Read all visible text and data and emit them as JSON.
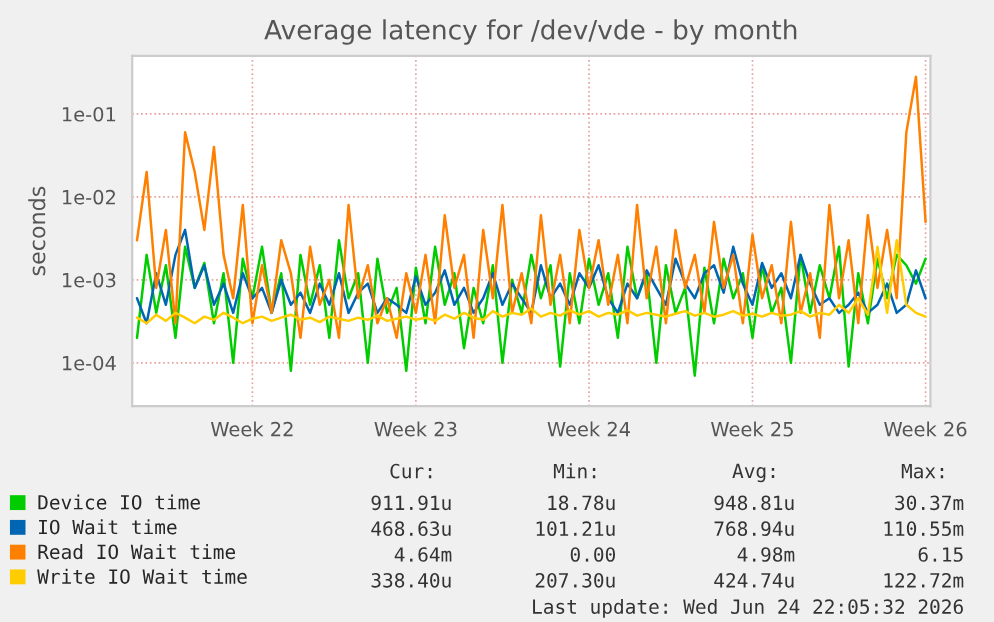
{
  "chart_data": {
    "type": "line",
    "title": "Average latency for /dev/vde - by month",
    "ylabel": "seconds",
    "categories": [
      null,
      null,
      null,
      null,
      null,
      null,
      null,
      null,
      null,
      null,
      null,
      null,
      "Week 22",
      null,
      null,
      null,
      null,
      null,
      null,
      null,
      null,
      null,
      null,
      null,
      null,
      null,
      null,
      null,
      null,
      "Week 23",
      null,
      null,
      null,
      null,
      null,
      null,
      null,
      null,
      null,
      null,
      null,
      null,
      null,
      null,
      null,
      null,
      null,
      "Week 24",
      null,
      null,
      null,
      null,
      null,
      null,
      null,
      null,
      null,
      null,
      null,
      null,
      null,
      null,
      null,
      null,
      "Week 25",
      null,
      null,
      null,
      null,
      null,
      null,
      null,
      null,
      null,
      null,
      null,
      null,
      null,
      null,
      null,
      null,
      null,
      "Week 26"
    ],
    "series": [
      {
        "name": "Device IO time",
        "color": "#00cc00",
        "values": [
          0.0002,
          0.002,
          0.0004,
          0.0015,
          0.0002,
          0.0025,
          0.0008,
          0.0016,
          0.0003,
          0.0012,
          0.0001,
          0.0018,
          0.0006,
          0.0025,
          0.0004,
          0.0012,
          8e-05,
          0.002,
          0.0005,
          0.0015,
          0.0002,
          0.003,
          0.0006,
          0.0012,
          0.0001,
          0.0018,
          0.0004,
          0.0008,
          8e-05,
          0.0014,
          0.0003,
          0.0025,
          0.0005,
          0.0012,
          0.00015,
          0.0008,
          0.0003,
          0.0015,
          0.0001,
          0.001,
          0.0004,
          0.002,
          0.0006,
          0.0015,
          9e-05,
          0.0012,
          0.0003,
          0.0018,
          0.0005,
          0.0012,
          0.0002,
          0.0025,
          0.0006,
          0.0012,
          0.0001,
          0.0015,
          0.0004,
          0.0008,
          7e-05,
          0.0014,
          0.0003,
          0.0018,
          0.0006,
          0.0012,
          0.0002,
          0.0015,
          0.0004,
          0.0008,
          0.0001,
          0.002,
          0.0004,
          0.0015,
          0.0006,
          0.0025,
          9e-05,
          0.0012,
          0.0003,
          0.0018,
          0.0006,
          0.002,
          0.0015,
          0.0009,
          0.0018
        ]
      },
      {
        "name": "IO Wait time",
        "color": "#0066b3",
        "values": [
          0.0006,
          0.0003,
          0.0012,
          0.0005,
          0.002,
          0.004,
          0.0008,
          0.0015,
          0.0005,
          0.0009,
          0.0004,
          0.0012,
          0.0006,
          0.0008,
          0.0004,
          0.001,
          0.0005,
          0.0007,
          0.0004,
          0.0009,
          0.0005,
          0.0012,
          0.0004,
          0.0007,
          0.0009,
          0.0004,
          0.0006,
          0.0005,
          0.0004,
          0.0011,
          0.0005,
          0.0007,
          0.0013,
          0.0005,
          0.0008,
          0.0004,
          0.0006,
          0.0012,
          0.0005,
          0.0009,
          0.0006,
          0.0004,
          0.0015,
          0.0006,
          0.0009,
          0.0005,
          0.0012,
          0.0008,
          0.0015,
          0.0006,
          0.0004,
          0.0009,
          0.0006,
          0.0013,
          0.0008,
          0.0005,
          0.0018,
          0.0009,
          0.0006,
          0.0012,
          0.0015,
          0.0007,
          0.0025,
          0.0009,
          0.0005,
          0.0016,
          0.0008,
          0.0012,
          0.0006,
          0.002,
          0.0009,
          0.0005,
          0.0006,
          0.0004,
          0.0005,
          0.0007,
          0.0004,
          0.0005,
          0.0009,
          0.0004,
          0.0005,
          0.0013,
          0.0006
        ]
      },
      {
        "name": "Read IO Wait time",
        "color": "#ff8000",
        "values": [
          0.003,
          0.02,
          0.0008,
          0.004,
          0.0003,
          0.06,
          0.02,
          0.004,
          0.04,
          0.002,
          0.0006,
          0.008,
          0.0003,
          0.0015,
          0.0004,
          0.003,
          0.0012,
          0.0002,
          0.0025,
          0.0005,
          0.001,
          0.0002,
          0.008,
          0.0006,
          0.0015,
          0.0003,
          0.0006,
          0.0002,
          0.0012,
          0.0004,
          0.002,
          0.0003,
          0.006,
          0.0008,
          0.002,
          0.0002,
          0.004,
          0.0006,
          0.008,
          0.0004,
          0.0012,
          0.0003,
          0.006,
          0.0005,
          0.002,
          0.0003,
          0.004,
          0.0008,
          0.003,
          0.0005,
          0.002,
          0.0003,
          0.008,
          0.0006,
          0.0025,
          0.0003,
          0.004,
          0.0008,
          0.002,
          0.0004,
          0.005,
          0.0008,
          0.002,
          0.0003,
          0.0035,
          0.0006,
          0.0015,
          0.0003,
          0.005,
          0.0004,
          0.0012,
          0.0002,
          0.008,
          0.0006,
          0.003,
          0.0003,
          0.006,
          0.0008,
          0.004,
          0.0006,
          0.06,
          0.28,
          0.005
        ]
      },
      {
        "name": "Write IO Wait time",
        "color": "#ffcc00",
        "values": [
          0.00035,
          0.0003,
          0.00038,
          0.00032,
          0.0004,
          0.00035,
          0.0003,
          0.00036,
          0.00033,
          0.0004,
          0.00035,
          0.0003,
          0.00034,
          0.00036,
          0.00032,
          0.00035,
          0.00038,
          0.00033,
          0.00035,
          0.00031,
          0.00036,
          0.00034,
          0.00032,
          0.00035,
          0.00033,
          0.00037,
          0.00032,
          0.00034,
          0.00036,
          0.00033,
          0.00035,
          0.00032,
          0.00038,
          0.00034,
          0.0004,
          0.00035,
          0.00033,
          0.00042,
          0.00036,
          0.0004,
          0.00038,
          0.00045,
          0.00036,
          0.0004,
          0.00037,
          0.00043,
          0.00038,
          0.00042,
          0.00036,
          0.0004,
          0.00038,
          0.00043,
          0.00037,
          0.0004,
          0.00038,
          0.00036,
          0.00039,
          0.00042,
          0.00037,
          0.0004,
          0.00036,
          0.00038,
          0.00042,
          0.00037,
          0.00039,
          0.00036,
          0.0004,
          0.00037,
          0.00038,
          0.00042,
          0.00036,
          0.0004,
          0.00038,
          0.0005,
          0.0004,
          0.0006,
          0.00038,
          0.0025,
          0.0004,
          0.003,
          0.0005,
          0.0004,
          0.00036
        ]
      }
    ],
    "log": "y",
    "ylim": [
      3e-05,
      0.5
    ],
    "yticks": [
      {
        "value": 0.0001,
        "label": "1e-04"
      },
      {
        "value": 0.001,
        "label": "1e-03"
      },
      {
        "value": 0.01,
        "label": "1e-02"
      },
      {
        "value": 0.1,
        "label": "1e-01"
      }
    ],
    "grid": true,
    "legend": "bottom",
    "marker": "none",
    "line_style": "solid",
    "annotations": [
      "Cur:",
      "Min:",
      "Avg:",
      "Max:",
      "911.91u",
      "18.78u",
      "948.81u",
      "30.37m",
      "468.63u",
      "101.21u",
      "768.94u",
      "110.55m",
      "4.64m",
      "0.00",
      "4.98m",
      "6.15",
      "338.40u",
      "207.30u",
      "424.74u",
      "122.72m",
      "Last update: Wed Jun 24 22:05:32 2026"
    ]
  }
}
